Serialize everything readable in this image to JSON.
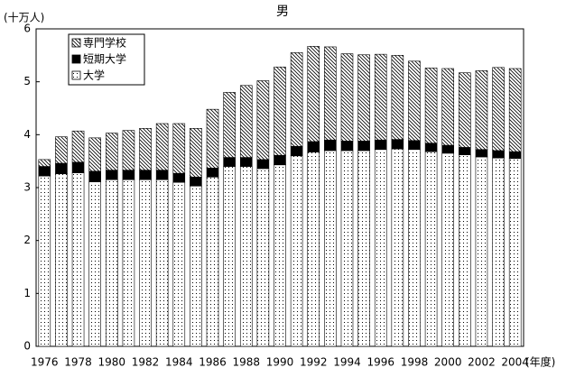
{
  "chart_data": {
    "type": "stacked-bar",
    "title": "男",
    "y_label": "(十万人)",
    "x_label": "(年度)",
    "categories": [
      "1976",
      null,
      "1978",
      null,
      "1980",
      null,
      "1982",
      null,
      "1984",
      null,
      "1986",
      null,
      "1988",
      null,
      "1990",
      null,
      "1992",
      null,
      "1994",
      null,
      "1996",
      null,
      "1998",
      null,
      "2000",
      null,
      "2002",
      null,
      "2004"
    ],
    "series": [
      {
        "name": "専門学校",
        "color": "#000000",
        "pattern": "hatch",
        "values": [
          0.13,
          0.5,
          0.59,
          0.63,
          0.7,
          0.75,
          0.79,
          0.88,
          0.94,
          0.92,
          1.11,
          1.23,
          1.36,
          1.49,
          1.67,
          1.77,
          1.8,
          1.76,
          1.65,
          1.63,
          1.62,
          1.59,
          1.5,
          1.42,
          1.45,
          1.41,
          1.49,
          1.57,
          1.57
        ]
      },
      {
        "name": "短期大学",
        "color": "#000000",
        "pattern": "solid",
        "values": [
          0.18,
          0.2,
          0.2,
          0.2,
          0.18,
          0.18,
          0.18,
          0.18,
          0.17,
          0.17,
          0.17,
          0.17,
          0.17,
          0.17,
          0.18,
          0.18,
          0.2,
          0.2,
          0.18,
          0.18,
          0.18,
          0.18,
          0.17,
          0.16,
          0.15,
          0.14,
          0.14,
          0.14,
          0.13
        ]
      },
      {
        "name": "大学",
        "color": "#000000",
        "pattern": "dots",
        "values": [
          3.22,
          3.26,
          3.28,
          3.11,
          3.15,
          3.15,
          3.15,
          3.15,
          3.1,
          3.03,
          3.2,
          3.4,
          3.4,
          3.36,
          3.43,
          3.6,
          3.67,
          3.7,
          3.7,
          3.7,
          3.72,
          3.73,
          3.72,
          3.68,
          3.65,
          3.62,
          3.58,
          3.56,
          3.55
        ]
      }
    ],
    "ylim": [
      0,
      6
    ],
    "yticks": [
      0,
      1,
      2,
      3,
      4,
      5,
      6
    ],
    "legend": "upper-left"
  }
}
